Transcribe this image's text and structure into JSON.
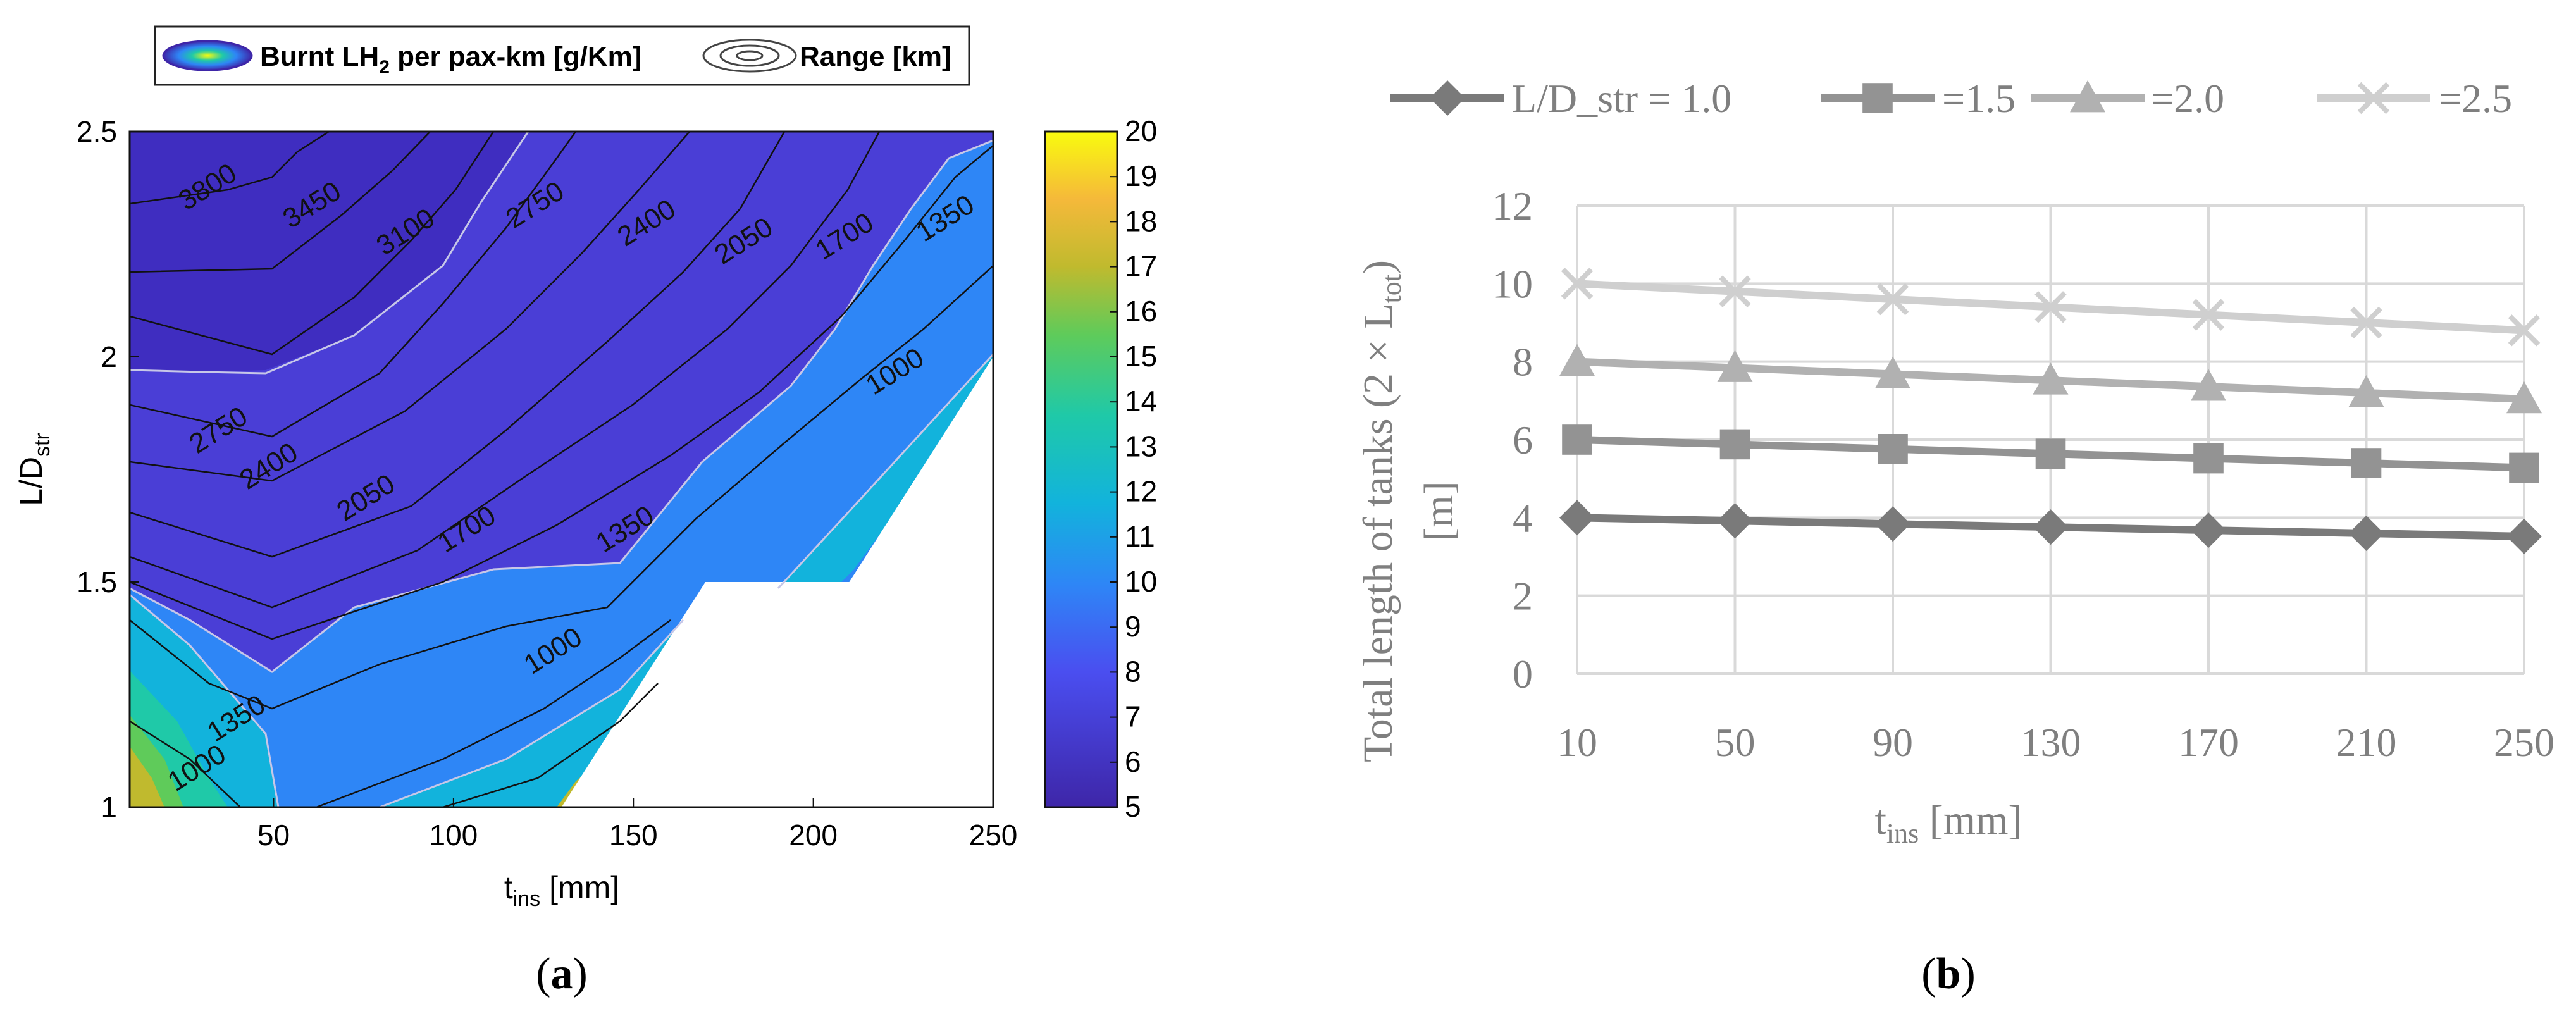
{
  "chart_data": [
    {
      "panel_label": "a",
      "type": "contour",
      "xlabel": {
        "main": "t",
        "sub": "ins",
        "unit": " [mm]"
      },
      "ylabel": {
        "main": "L/D",
        "sub": "str"
      },
      "xlim": [
        10,
        250
      ],
      "ylim": [
        1,
        2.5
      ],
      "x_ticks": [
        "50",
        "100",
        "150",
        "200",
        "250"
      ],
      "y_ticks": [
        "1",
        "1.5",
        "2",
        "2.5"
      ],
      "legend": {
        "placement": "top",
        "filled_label": {
          "main": "Burnt LH",
          "sub": "2",
          "rest": " per pax-km [g/Km]"
        },
        "lines_label": "Range [km]"
      },
      "colorbar": {
        "range": [
          5,
          20
        ],
        "ticks": [
          "5",
          "6",
          "7",
          "8",
          "9",
          "10",
          "11",
          "12",
          "13",
          "14",
          "15",
          "16",
          "17",
          "18",
          "19",
          "20"
        ]
      },
      "infeasible_region": [
        [
          130,
          1
        ],
        [
          170,
          1.5
        ],
        [
          210,
          1.5
        ],
        [
          250,
          2.0
        ],
        [
          250,
          1
        ]
      ],
      "range_contour_labels": [
        {
          "text": "3800",
          "x": 33,
          "y": 2.36
        },
        {
          "text": "3450",
          "x": 62,
          "y": 2.32
        },
        {
          "text": "3100",
          "x": 88,
          "y": 2.26
        },
        {
          "text": "2750",
          "x": 124,
          "y": 2.32
        },
        {
          "text": "2400",
          "x": 155,
          "y": 2.28
        },
        {
          "text": "2050",
          "x": 182,
          "y": 2.24
        },
        {
          "text": "1700",
          "x": 210,
          "y": 2.25
        },
        {
          "text": "1350",
          "x": 238,
          "y": 2.29
        },
        {
          "text": "2750",
          "x": 36,
          "y": 1.82
        },
        {
          "text": "2400",
          "x": 50,
          "y": 1.74
        },
        {
          "text": "2050",
          "x": 77,
          "y": 1.67
        },
        {
          "text": "1700",
          "x": 105,
          "y": 1.6
        },
        {
          "text": "1350",
          "x": 149,
          "y": 1.6
        },
        {
          "text": "1000",
          "x": 224,
          "y": 1.95
        },
        {
          "text": "1000",
          "x": 129,
          "y": 1.33
        },
        {
          "text": "1350",
          "x": 41,
          "y": 1.18
        },
        {
          "text": "1000",
          "x": 30,
          "y": 1.07
        }
      ]
    },
    {
      "panel_label": "b",
      "type": "line",
      "xlabel": {
        "main": "t",
        "sub": "ins",
        "unit": " [mm]"
      },
      "ylabel": {
        "line1": "Total length of tanks (2 × L",
        "sub": "tot",
        "line1_end": ")",
        "line2": "[m]"
      },
      "categories": [
        "10",
        "50",
        "90",
        "130",
        "170",
        "210",
        "250"
      ],
      "ylim": [
        0,
        12
      ],
      "y_ticks": [
        "0",
        "2",
        "4",
        "6",
        "8",
        "10",
        "12"
      ],
      "grid": true,
      "legend_placement": "top",
      "series": [
        {
          "name": "L/D_str = 1.0",
          "marker": "diamond",
          "color": "#7a7a7a",
          "values": [
            4.0,
            3.92,
            3.84,
            3.76,
            3.68,
            3.6,
            3.52
          ]
        },
        {
          "name": "=1.5",
          "marker": "square",
          "color": "#939393",
          "values": [
            6.0,
            5.88,
            5.76,
            5.64,
            5.52,
            5.4,
            5.28
          ]
        },
        {
          "name": "=2.0",
          "marker": "triangle",
          "color": "#b1b1b1",
          "values": [
            8.0,
            7.84,
            7.68,
            7.52,
            7.36,
            7.2,
            7.04
          ]
        },
        {
          "name": "=2.5",
          "marker": "x",
          "color": "#cfcfcf",
          "values": [
            10.0,
            9.8,
            9.6,
            9.4,
            9.2,
            9.0,
            8.8
          ]
        }
      ]
    }
  ]
}
